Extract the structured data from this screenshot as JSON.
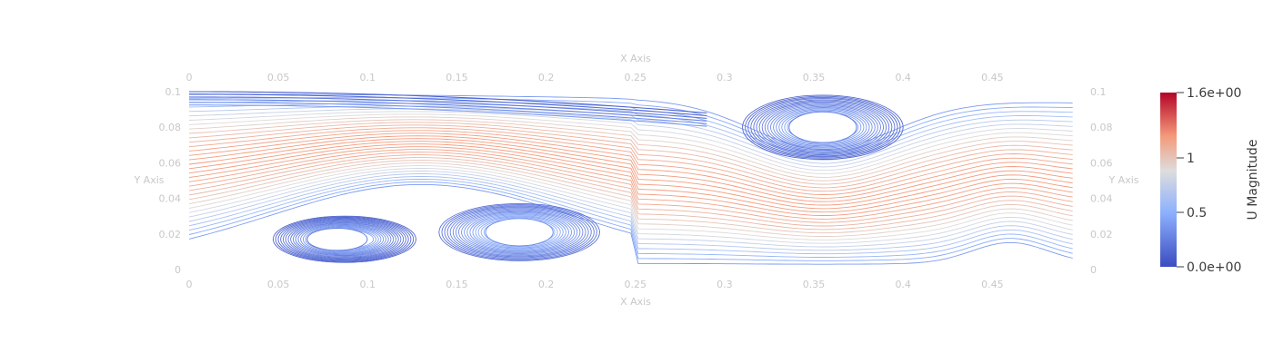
{
  "chart_data": {
    "type": "streamline",
    "xlabel": "X Axis",
    "ylabel": "Y Axis",
    "xlim": [
      0,
      0.5
    ],
    "ylim": [
      0,
      0.1
    ],
    "x_ticks": [
      "0",
      "0.05",
      "0.1",
      "0.15",
      "0.2",
      "0.25",
      "0.3",
      "0.35",
      "0.4",
      "0.45"
    ],
    "y_ticks": [
      "0",
      "0.02",
      "0.04",
      "0.06",
      "0.08",
      "0.1"
    ],
    "colorbar": {
      "title": "U Magnitude",
      "range": [
        0.0,
        1.6
      ],
      "tick_labels": [
        "1.6e+00",
        "1",
        "0.5",
        "0.0e+00"
      ],
      "tick_values": [
        1.6,
        1.0,
        0.5,
        0.0
      ],
      "colors": [
        "#3b4cc0",
        "#8db0fe",
        "#dddddd",
        "#f49a7b",
        "#b40426"
      ]
    },
    "vortices": [
      {
        "center": [
          0.083,
          0.017
        ],
        "rx": 0.04,
        "ry": 0.013,
        "magnitude": 0.1
      },
      {
        "center": [
          0.185,
          0.021
        ],
        "rx": 0.045,
        "ry": 0.016,
        "magnitude": 0.18
      },
      {
        "center": [
          0.355,
          0.08
        ],
        "rx": 0.045,
        "ry": 0.018,
        "magnitude": 0.12
      }
    ],
    "flow_region": {
      "x": [
        0.0,
        0.5
      ],
      "y_bottom": [
        0.0,
        0.045,
        0.002
      ],
      "y_top": [
        0.1,
        0.1,
        0.08
      ]
    }
  }
}
